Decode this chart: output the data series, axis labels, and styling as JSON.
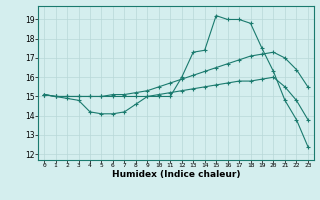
{
  "title": "",
  "xlabel": "Humidex (Indice chaleur)",
  "ylabel": "",
  "xlim": [
    -0.5,
    23.5
  ],
  "ylim": [
    11.7,
    19.7
  ],
  "yticks": [
    12,
    13,
    14,
    15,
    16,
    17,
    18,
    19
  ],
  "xticks": [
    0,
    1,
    2,
    3,
    4,
    5,
    6,
    7,
    8,
    9,
    10,
    11,
    12,
    13,
    14,
    15,
    16,
    17,
    18,
    19,
    20,
    21,
    22,
    23
  ],
  "bg_color": "#d4eeee",
  "line_color": "#1a7a6e",
  "grid_color": "#b8d8d8",
  "series": [
    [
      15.1,
      15.0,
      14.9,
      14.8,
      14.2,
      14.1,
      14.1,
      14.2,
      14.6,
      15.0,
      15.0,
      15.0,
      16.0,
      17.3,
      17.4,
      19.2,
      19.0,
      19.0,
      18.8,
      17.5,
      16.3,
      14.8,
      13.8,
      12.4
    ],
    [
      15.1,
      15.0,
      15.0,
      15.0,
      15.0,
      15.0,
      15.1,
      15.1,
      15.2,
      15.3,
      15.5,
      15.7,
      15.9,
      16.1,
      16.3,
      16.5,
      16.7,
      16.9,
      17.1,
      17.2,
      17.3,
      17.0,
      16.4,
      15.5
    ],
    [
      15.1,
      15.0,
      15.0,
      15.0,
      15.0,
      15.0,
      15.0,
      15.0,
      15.0,
      15.0,
      15.1,
      15.2,
      15.3,
      15.4,
      15.5,
      15.6,
      15.7,
      15.8,
      15.8,
      15.9,
      16.0,
      15.5,
      14.8,
      13.8
    ]
  ]
}
